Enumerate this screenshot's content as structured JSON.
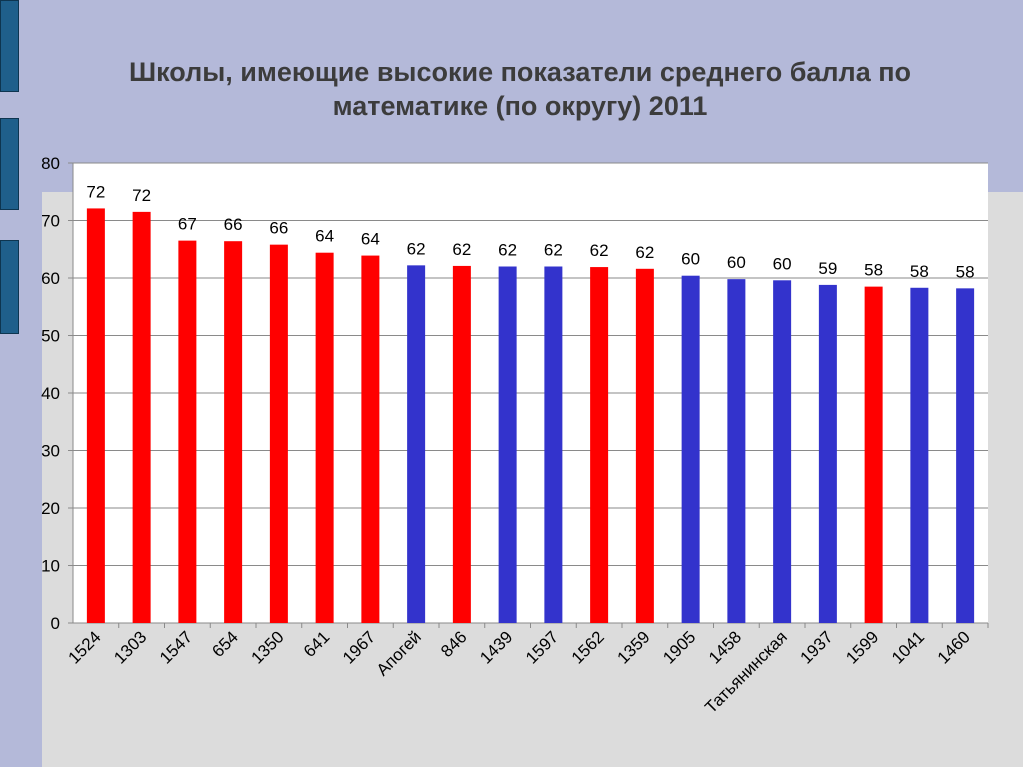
{
  "title": "Школы, имеющие высокие показатели  среднего балла по\nматематике (по округу) 2011",
  "colors": {
    "red": "#ff0000",
    "blue": "#3333cc"
  },
  "chart_data": {
    "type": "bar",
    "title": "Школы, имеющие высокие показатели  среднего балла по математике (по округу) 2011",
    "categories": [
      "1524",
      "1303",
      "1547",
      "654",
      "1350",
      "641",
      "1967",
      "Апогей",
      "846",
      "1439",
      "1597",
      "1562",
      "1359",
      "1905",
      "1458",
      "Татьянинская",
      "1937",
      "1599",
      "1041",
      "1460"
    ],
    "values": [
      72.1,
      71.5,
      66.5,
      66.4,
      65.8,
      64.4,
      63.9,
      62.2,
      62.1,
      62.0,
      62.0,
      61.9,
      61.6,
      60.4,
      59.8,
      59.6,
      58.8,
      58.5,
      58.3,
      58.2
    ],
    "data_labels": [
      "72",
      "72",
      "67",
      "66",
      "66",
      "64",
      "64",
      "62",
      "62",
      "62",
      "62",
      "62",
      "62",
      "60",
      "60",
      "60",
      "59",
      "58",
      "58",
      "58"
    ],
    "bar_colors": [
      "red",
      "red",
      "red",
      "red",
      "red",
      "red",
      "red",
      "blue",
      "red",
      "blue",
      "blue",
      "red",
      "red",
      "blue",
      "blue",
      "blue",
      "blue",
      "red",
      "blue",
      "blue"
    ],
    "y_ticks": [
      "0",
      "10",
      "20",
      "30",
      "40",
      "50",
      "60",
      "70",
      "80"
    ],
    "ylim": [
      0,
      80
    ],
    "grid": true
  }
}
